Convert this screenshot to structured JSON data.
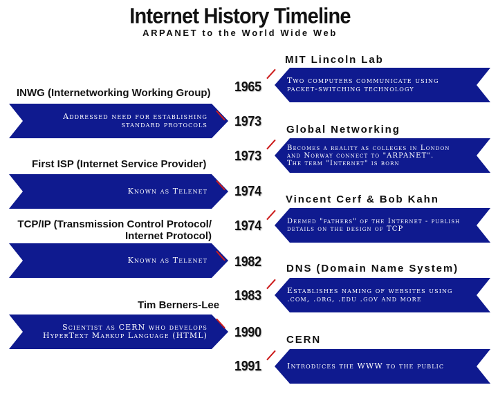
{
  "title": "Internet History Timeline",
  "subtitle": "ARPANET to the World Wide Web",
  "colors": {
    "banner": "#0f1a8f",
    "accent_tick": "#cc1b1b",
    "text": "#111111"
  },
  "left_events": [
    {
      "heading": "INWG (Internetworking Working Group)",
      "year": "1973",
      "lines": [
        "Addressed need for establishing",
        "standard protocols"
      ]
    },
    {
      "heading": "First ISP (Internet Service Provider)",
      "year": "1974",
      "lines": [
        "Known as Telenet"
      ]
    },
    {
      "heading_lines": [
        "TCP/IP (Transmission Control Protocol/",
        "Internet Protocol)"
      ],
      "year": "1982",
      "lines": [
        "Known as Telenet"
      ]
    },
    {
      "heading": "Tim Berners-Lee",
      "year": "1990",
      "lines": [
        "Scientist as CERN who develops",
        "HyperText Markup Language (HTML)"
      ]
    }
  ],
  "right_events": [
    {
      "heading": "MIT Lincoln Lab",
      "year": "1965",
      "lines": [
        "Two computers communicate using",
        "packet-switching technology"
      ]
    },
    {
      "heading": "Global Networking",
      "year": "1973",
      "lines": [
        "Becomes a reality as colleges in London",
        "and Norway connect to \"ARPANET\".",
        "The term \"Internet\" is born"
      ]
    },
    {
      "heading": "Vincent Cerf & Bob Kahn",
      "year": "1974",
      "lines": [
        "Deemed \"fathers\" of the Internet - publish",
        "details on the design of TCP"
      ]
    },
    {
      "heading": "DNS (Domain Name System)",
      "year": "1983",
      "lines": [
        "Establishes naming of websites using",
        ".com, .org, .edu .gov and more"
      ]
    },
    {
      "heading": "CERN",
      "year": "1991",
      "lines": [
        "Introduces the WWW to the public"
      ]
    }
  ]
}
